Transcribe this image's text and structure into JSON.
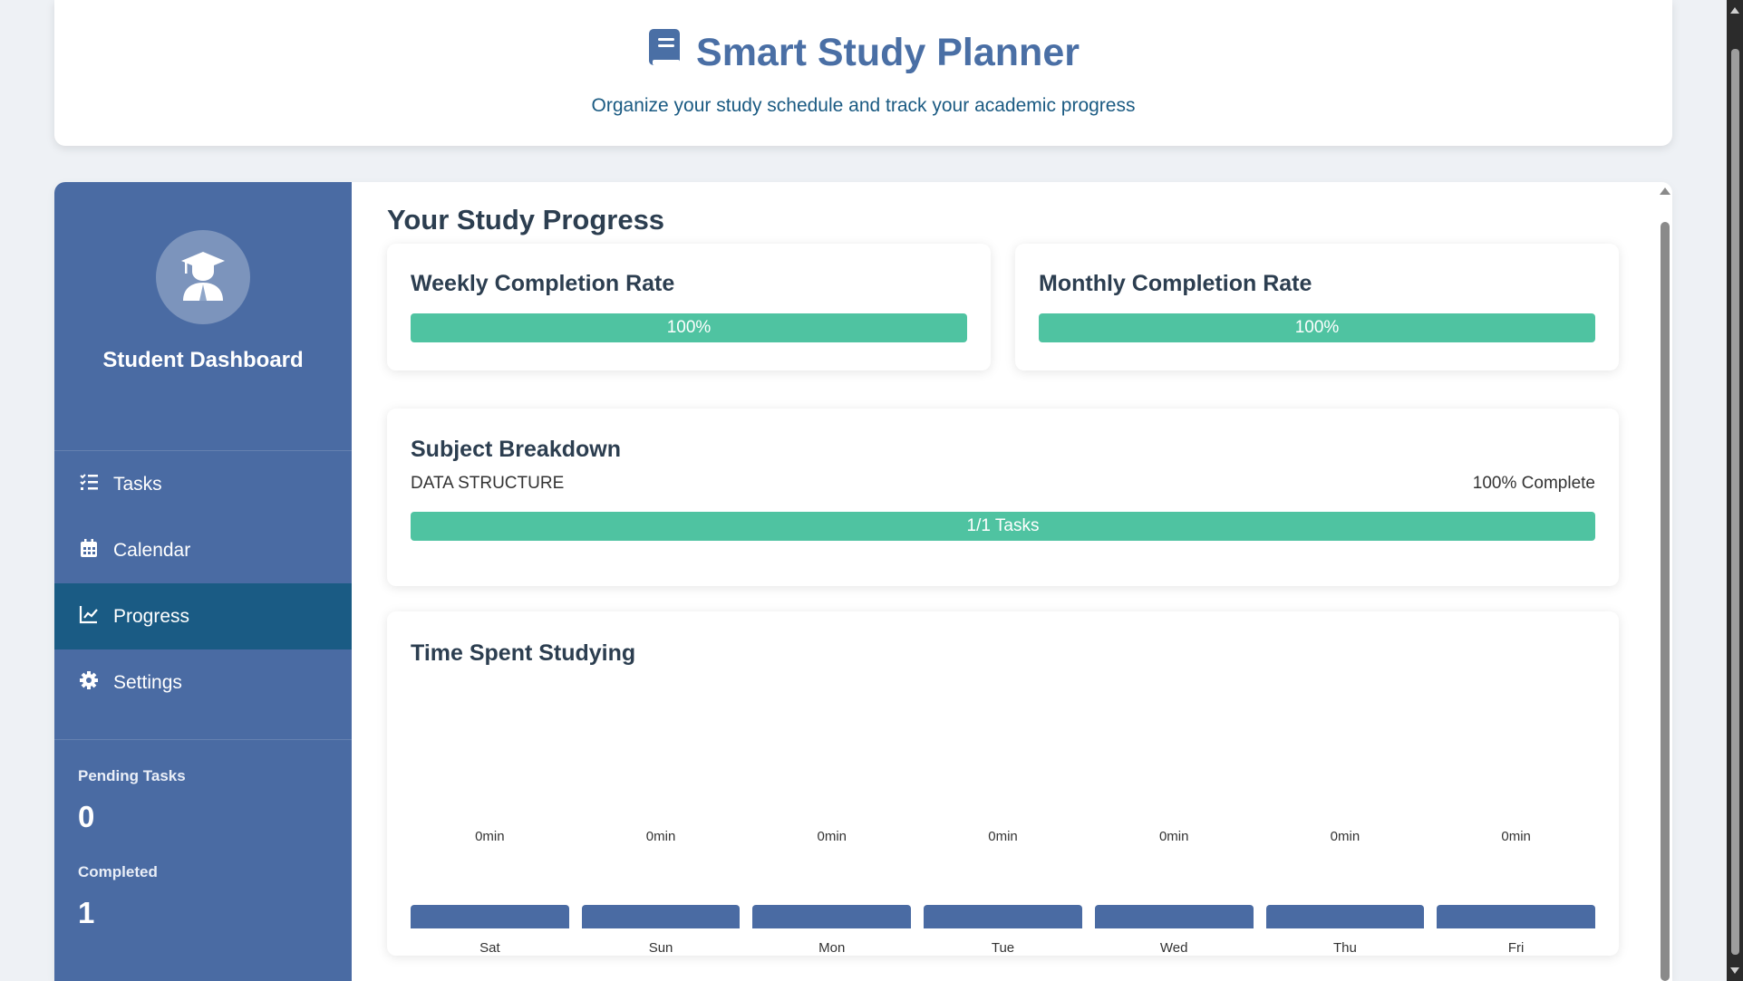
{
  "header": {
    "title": "Smart Study Planner",
    "subtitle": "Organize your study schedule and track your academic progress",
    "icon": "book-icon"
  },
  "sidebar": {
    "profile_name": "Student Dashboard",
    "avatar_icon": "graduate-icon",
    "nav": [
      {
        "label": "Tasks",
        "icon": "tasks-icon",
        "active": false
      },
      {
        "label": "Calendar",
        "icon": "calendar-icon",
        "active": false
      },
      {
        "label": "Progress",
        "icon": "chart-line-icon",
        "active": true
      },
      {
        "label": "Settings",
        "icon": "gear-icon",
        "active": false
      }
    ],
    "stats": {
      "pending_label": "Pending Tasks",
      "pending_value": "0",
      "completed_label": "Completed",
      "completed_value": "1"
    }
  },
  "main": {
    "title": "Your Study Progress",
    "weekly": {
      "label": "Weekly Completion Rate",
      "percent": 100,
      "text": "100%"
    },
    "monthly": {
      "label": "Monthly Completion Rate",
      "percent": 100,
      "text": "100%"
    },
    "subjects": {
      "label": "Subject Breakdown",
      "items": [
        {
          "name": "DATA STRUCTURE",
          "status": "100% Complete",
          "percent": 100,
          "bar_text": "1/1 Tasks"
        }
      ]
    },
    "time": {
      "label": "Time Spent Studying"
    }
  },
  "chart_data": {
    "type": "bar",
    "categories": [
      "Sat",
      "Sun",
      "Mon",
      "Tue",
      "Wed",
      "Thu",
      "Fri"
    ],
    "values": [
      0,
      0,
      0,
      0,
      0,
      0,
      0
    ],
    "value_labels": [
      "0min",
      "0min",
      "0min",
      "0min",
      "0min",
      "0min",
      "0min"
    ],
    "title": "Time Spent Studying",
    "bar_color": "#4a6ba3"
  },
  "colors": {
    "accent": "#4a6fa5",
    "sidebar": "#4a6ba3",
    "active_nav": "#1a5b84",
    "progress": "#4fc3a1"
  }
}
